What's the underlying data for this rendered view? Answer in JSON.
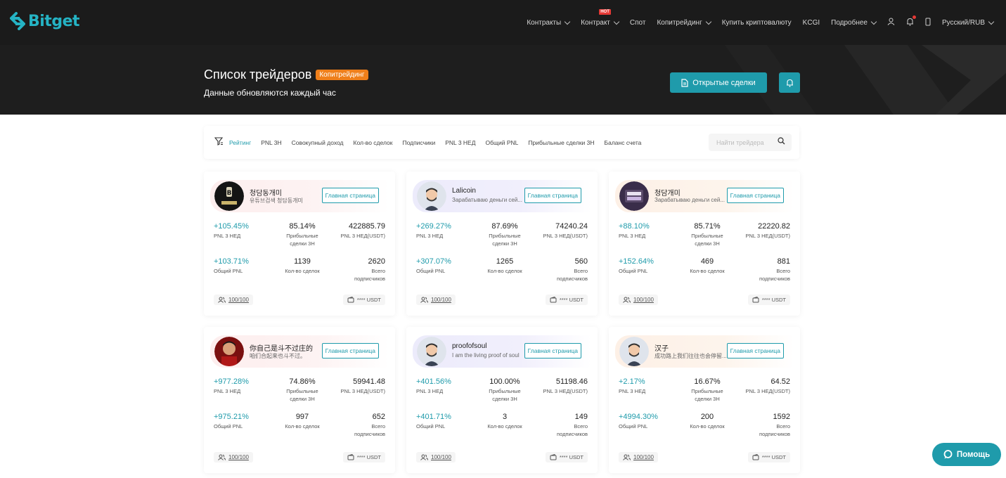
{
  "brand": {
    "name": "Bitget",
    "accent": "#1f9bab"
  },
  "nav": {
    "items": [
      "Контракты",
      "Контракт",
      "Спот",
      "Копитрейдинг",
      "Купить криптовалюту",
      "KCGI",
      "Подробнее"
    ],
    "hot_label": "HOT",
    "locale": "Русский/RUB"
  },
  "banner": {
    "title": "Список трейдеров",
    "tag": "Копитрейдинг",
    "subtitle": "Данные обновляются каждый час",
    "open_trades_label": "Открытые сделки"
  },
  "filters": {
    "tabs": [
      "Рейтинг",
      "PNL 3Н",
      "Совокупный доход",
      "Кол-во сделок",
      "Подписчики",
      "PNL 3 НЕД",
      "Общий PNL",
      "Прибыльные сделки 3Н",
      "Баланс счета"
    ],
    "active": "Рейтинг",
    "search_placeholder": "Найти трейдера"
  },
  "labels": {
    "pnl3w": "PNL 3 НЕД",
    "profitable": "Прибыльные\nсделки 3Н",
    "pnl3w_usdt": "PNL 3 НЕД(USDT)",
    "total_pnl": "Общий PNL",
    "trades": "Кол-во сделок",
    "subs": "Всего\nподписчиков",
    "home": "Главная страница",
    "capacity": "100/100",
    "balance": "**** USDT"
  },
  "traders": [
    {
      "name": "청담동개미",
      "desc": "유튜브검색 청담동개미",
      "pnl3w": "+105.45%",
      "winrate": "85.14%",
      "pnl_usdt": "422885.79",
      "total_pnl": "+103.71%",
      "trades": "1139",
      "subs": "2620"
    },
    {
      "name": "Lalicoin",
      "desc": "Зарабатываю деньги сей...",
      "pnl3w": "+269.27%",
      "winrate": "87.69%",
      "pnl_usdt": "74240.24",
      "total_pnl": "+307.07%",
      "trades": "1265",
      "subs": "560"
    },
    {
      "name": "청담개미",
      "desc": "Зарабатываю деньги сей...",
      "pnl3w": "+88.10%",
      "winrate": "85.71%",
      "pnl_usdt": "22220.82",
      "total_pnl": "+152.64%",
      "trades": "469",
      "subs": "881"
    },
    {
      "name": "你自己是斗不过庄的",
      "desc": "咱们合起来也斗不过。",
      "pnl3w": "+977.28%",
      "winrate": "74.86%",
      "pnl_usdt": "59941.48",
      "total_pnl": "+975.21%",
      "trades": "997",
      "subs": "652"
    },
    {
      "name": "proofofsoul",
      "desc": "I am the living proof of soul",
      "pnl3w": "+401.56%",
      "winrate": "100.00%",
      "pnl_usdt": "51198.46",
      "total_pnl": "+401.71%",
      "trades": "3",
      "subs": "149"
    },
    {
      "name": "汉子",
      "desc": "成功路上我们往往也会停留...",
      "pnl3w": "+2.17%",
      "winrate": "16.67%",
      "pnl_usdt": "64.52",
      "total_pnl": "+4994.30%",
      "trades": "200",
      "subs": "1592"
    }
  ],
  "help_label": "Помощь"
}
